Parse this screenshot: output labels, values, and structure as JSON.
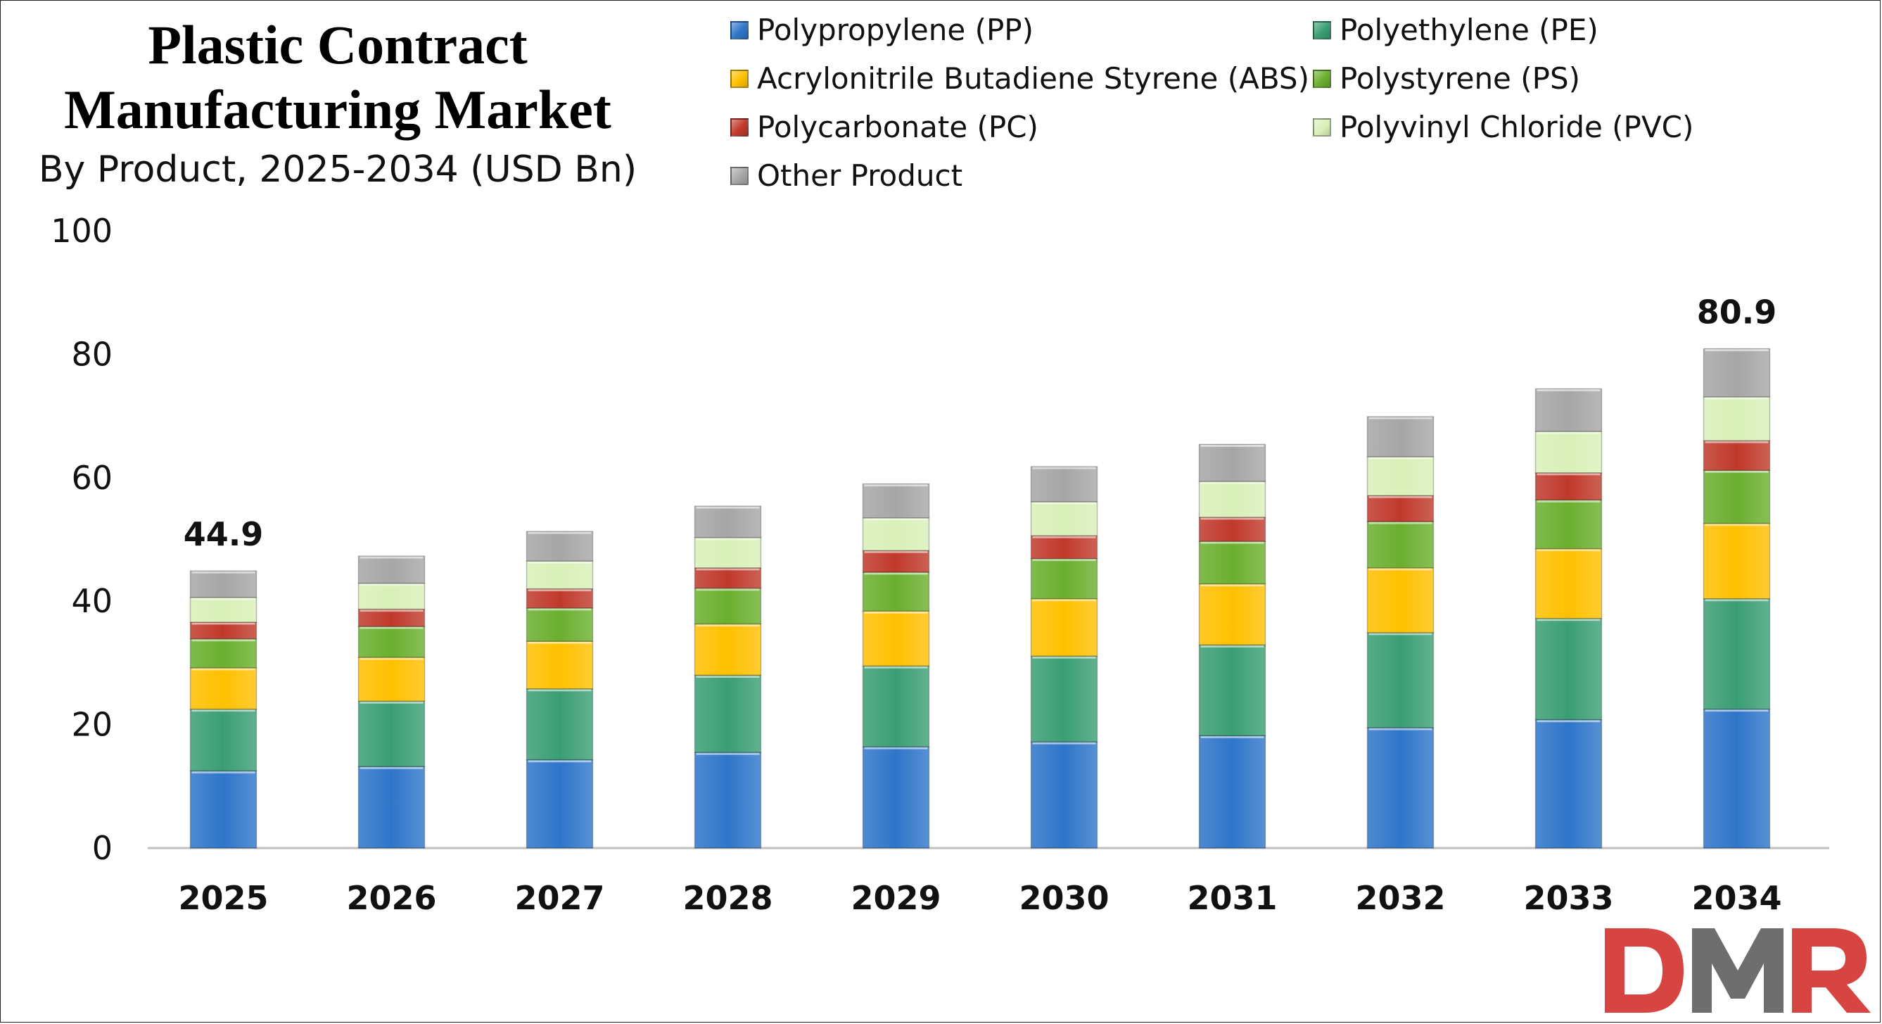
{
  "chart_data": {
    "type": "bar",
    "stacked": true,
    "title_lines": [
      "Plastic Contract",
      "Manufacturing Market"
    ],
    "subtitle": "By Product, 2025-2034 (USD Bn)",
    "categories": [
      "2025",
      "2026",
      "2027",
      "2028",
      "2029",
      "2030",
      "2031",
      "2032",
      "2033",
      "2034"
    ],
    "ylim": [
      0,
      100
    ],
    "yticks": [
      0,
      20,
      40,
      60,
      80,
      100
    ],
    "grid": false,
    "legend_position": "top",
    "series": [
      {
        "name": "Polypropylene (PP)",
        "color": "#2E75C9",
        "values": [
          12.5,
          13.2,
          14.3,
          15.5,
          16.4,
          17.2,
          18.2,
          19.5,
          20.8,
          22.5
        ]
      },
      {
        "name": "Polyethylene (PE)",
        "color": "#3A9E74",
        "values": [
          10.0,
          10.6,
          11.5,
          12.5,
          13.1,
          13.9,
          14.7,
          15.4,
          16.4,
          17.9
        ]
      },
      {
        "name": "Acrylonitrile Butadiene Styrene (ABS)",
        "color": "#FFC000",
        "values": [
          6.7,
          7.1,
          7.7,
          8.3,
          8.9,
          9.3,
          9.9,
          10.5,
          11.3,
          12.2
        ]
      },
      {
        "name": "Polystyrene (PS)",
        "color": "#6AAF2E",
        "values": [
          4.7,
          5.0,
          5.4,
          5.8,
          6.3,
          6.5,
          6.9,
          7.5,
          7.9,
          8.6
        ]
      },
      {
        "name": "Polycarbonate (PC)",
        "color": "#C0392B",
        "values": [
          2.7,
          2.8,
          3.1,
          3.3,
          3.5,
          3.7,
          3.9,
          4.2,
          4.4,
          4.8
        ]
      },
      {
        "name": "Polyvinyl Chloride (PVC)",
        "color": "#D9F0B8",
        "values": [
          4.0,
          4.2,
          4.5,
          4.9,
          5.3,
          5.5,
          5.8,
          6.3,
          6.7,
          7.1
        ]
      },
      {
        "name": "Other Product",
        "color": "#A6A6A6",
        "values": [
          4.3,
          4.4,
          4.8,
          5.1,
          5.5,
          5.7,
          6.0,
          6.5,
          6.9,
          7.8
        ]
      }
    ],
    "annotations": [
      {
        "category": "2025",
        "text": "44.9"
      },
      {
        "category": "2034",
        "text": "80.9"
      }
    ]
  },
  "logo": {
    "text": "DMR",
    "colors": [
      "#D64541",
      "#6E6E6E"
    ]
  }
}
